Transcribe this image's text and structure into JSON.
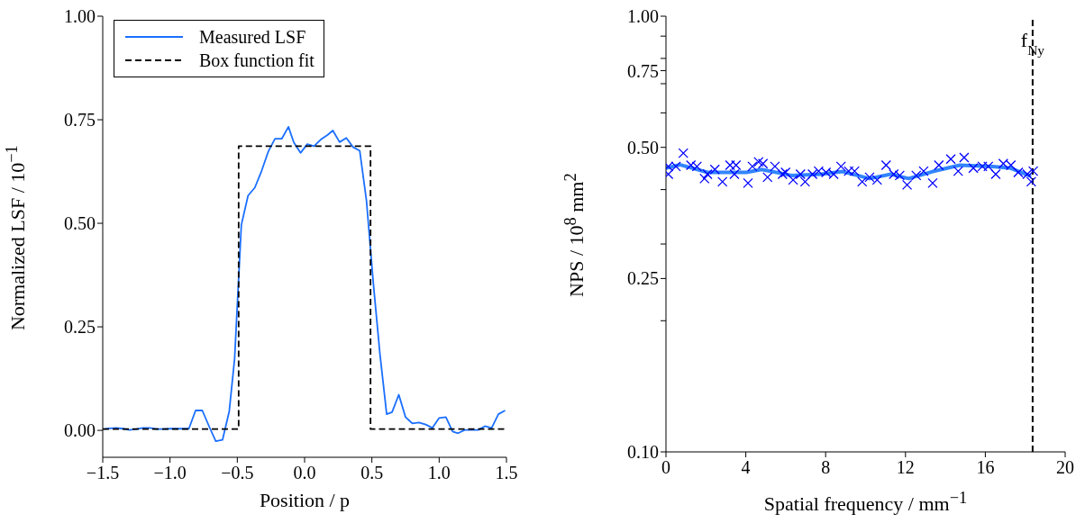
{
  "chart_data": [
    {
      "type": "line",
      "xlabel": "Position / p",
      "ylabel": "Normalized LSF / 10$^{−1}$",
      "xlim": [
        -1.5,
        1.5
      ],
      "ylim": [
        -0.065,
        1.0
      ],
      "xticks": [
        {
          "value": -1.5,
          "label": "−1.5"
        },
        {
          "value": -1.0,
          "label": "−1.0"
        },
        {
          "value": -0.5,
          "label": "−0.5"
        },
        {
          "value": 0,
          "label": "0.0"
        },
        {
          "value": 0.5,
          "label": "0.5"
        },
        {
          "value": 1.0,
          "label": "1.0"
        },
        {
          "value": 1.5,
          "label": "1.5"
        }
      ],
      "yticks": [
        {
          "value": 0,
          "label": "0.00"
        },
        {
          "value": 0.25,
          "label": "0.25"
        },
        {
          "value": 0.5,
          "label": "0.50"
        },
        {
          "value": 0.75,
          "label": "0.75"
        },
        {
          "value": 1.0,
          "label": "1.00"
        }
      ],
      "legend": "top left",
      "series": [
        {
          "name": "Measured LSF",
          "color": "#1a6fff",
          "line_style": "solid",
          "x": [
            -1.49,
            -1.45,
            -1.4,
            -1.35,
            -1.3,
            -1.25,
            -1.2,
            -1.15,
            -1.1,
            -1.05,
            -1.0,
            -0.95,
            -0.86,
            -0.81,
            -0.76,
            -0.71,
            -0.66,
            -0.61,
            -0.56,
            -0.52,
            -0.47,
            -0.42,
            -0.37,
            -0.32,
            -0.27,
            -0.22,
            -0.17,
            -0.12,
            -0.08,
            -0.03,
            0.02,
            0.07,
            0.12,
            0.17,
            0.21,
            0.26,
            0.31,
            0.36,
            0.41,
            0.46,
            0.51,
            0.56,
            0.61,
            0.65,
            0.7,
            0.75,
            0.8,
            0.85,
            0.9,
            0.95,
            1.0,
            1.05,
            1.1,
            1.14,
            1.19,
            1.24,
            1.29,
            1.34,
            1.39,
            1.44,
            1.49
          ],
          "values": [
            0.003,
            0.005,
            0.006,
            0.004,
            0.001,
            0.003,
            0.006,
            0.006,
            0.003,
            0.003,
            0.004,
            0.004,
            0.004,
            0.048,
            0.048,
            0.01,
            -0.026,
            -0.023,
            0.046,
            0.173,
            0.496,
            0.567,
            0.586,
            0.626,
            0.673,
            0.704,
            0.704,
            0.733,
            0.695,
            0.67,
            0.691,
            0.686,
            0.702,
            0.713,
            0.724,
            0.696,
            0.706,
            0.684,
            0.675,
            0.554,
            0.358,
            0.184,
            0.039,
            0.044,
            0.086,
            0.032,
            0.017,
            0.019,
            0.014,
            0.006,
            0.03,
            0.032,
            -0.003,
            -0.007,
            0.001,
            0.001,
            0.001,
            0.01,
            0.006,
            0.039,
            0.048
          ]
        },
        {
          "name": "Box function fit",
          "color": "#000000",
          "line_style": "dashed",
          "x": [
            -1.5,
            -0.49,
            -0.49,
            0.49,
            0.49,
            1.5
          ],
          "values": [
            0.003,
            0.003,
            0.686,
            0.686,
            0.003,
            0.003
          ]
        }
      ]
    },
    {
      "type": "scatter",
      "xlabel": "Spatial frequency / mm$^{−1}$",
      "ylabel": "NPS / 10$^{8}$ mm$^{2}$",
      "log": "y",
      "xlim": [
        0,
        20
      ],
      "ylim": [
        0.1,
        1.0
      ],
      "xticks": [
        0,
        4,
        8,
        12,
        16,
        20
      ],
      "yticks": [
        {
          "value": 0.1,
          "label": "0.10"
        },
        {
          "value": 0.2,
          "label": null
        },
        {
          "value": 0.25,
          "label": "0.25"
        },
        {
          "value": 0.3,
          "label": null
        },
        {
          "value": 0.4,
          "label": null
        },
        {
          "value": 0.5,
          "label": "0.50"
        },
        {
          "value": 0.6,
          "label": null
        },
        {
          "value": 0.7,
          "label": null
        },
        {
          "value": 0.75,
          "label": "0.75"
        },
        {
          "value": 0.8,
          "label": null
        },
        {
          "value": 0.9,
          "label": null
        },
        {
          "value": 1.0,
          "label": "1.00"
        }
      ],
      "ref_lines": [
        {
          "axis": "x",
          "value": 18.37,
          "label": "f$_{Ny}$",
          "color": "#000000",
          "line_style": "dashed"
        }
      ],
      "series": [
        {
          "color": "#0000ff",
          "marker": "cross",
          "x": [
            0.12,
            0.12,
            0.5,
            0.87,
            1.25,
            1.55,
            1.93,
            2.08,
            2.45,
            2.83,
            3.21,
            3.43,
            3.51,
            4.11,
            4.33,
            4.64,
            4.86,
            5.09,
            5.46,
            5.84,
            5.99,
            6.37,
            6.74,
            6.97,
            7.34,
            7.65,
            8.02,
            8.4,
            8.77,
            9.15,
            9.45,
            9.83,
            10.2,
            10.58,
            11.03,
            11.41,
            11.71,
            12.08,
            12.54,
            12.91,
            13.36,
            13.67,
            14.27,
            14.64,
            14.94,
            15.4,
            15.85,
            16.15,
            16.52,
            16.9,
            17.28,
            17.65,
            18.1,
            18.3,
            18.4
          ],
          "values": [
            0.452,
            0.434,
            0.452,
            0.485,
            0.455,
            0.452,
            0.424,
            0.434,
            0.445,
            0.417,
            0.455,
            0.434,
            0.455,
            0.414,
            0.452,
            0.463,
            0.459,
            0.427,
            0.452,
            0.434,
            0.438,
            0.421,
            0.434,
            0.417,
            0.434,
            0.441,
            0.438,
            0.434,
            0.452,
            0.441,
            0.441,
            0.417,
            0.427,
            0.421,
            0.455,
            0.434,
            0.431,
            0.41,
            0.431,
            0.441,
            0.414,
            0.455,
            0.47,
            0.441,
            0.474,
            0.448,
            0.452,
            0.452,
            0.434,
            0.459,
            0.455,
            0.438,
            0.434,
            0.417,
            0.441
          ]
        },
        {
          "type": "line",
          "color": "#3385ff",
          "marker": "none",
          "x": [
            0,
            0.72,
            2.08,
            4.03,
            4.79,
            6.29,
            7.79,
            8.85,
            10.2,
            11.26,
            12.16,
            13.36,
            14.72,
            16.37,
            17.27,
            18.18,
            18.3
          ],
          "values": [
            0.448,
            0.456,
            0.438,
            0.438,
            0.445,
            0.431,
            0.434,
            0.44,
            0.424,
            0.434,
            0.424,
            0.44,
            0.455,
            0.452,
            0.448,
            0.431,
            0.431
          ]
        }
      ]
    }
  ]
}
